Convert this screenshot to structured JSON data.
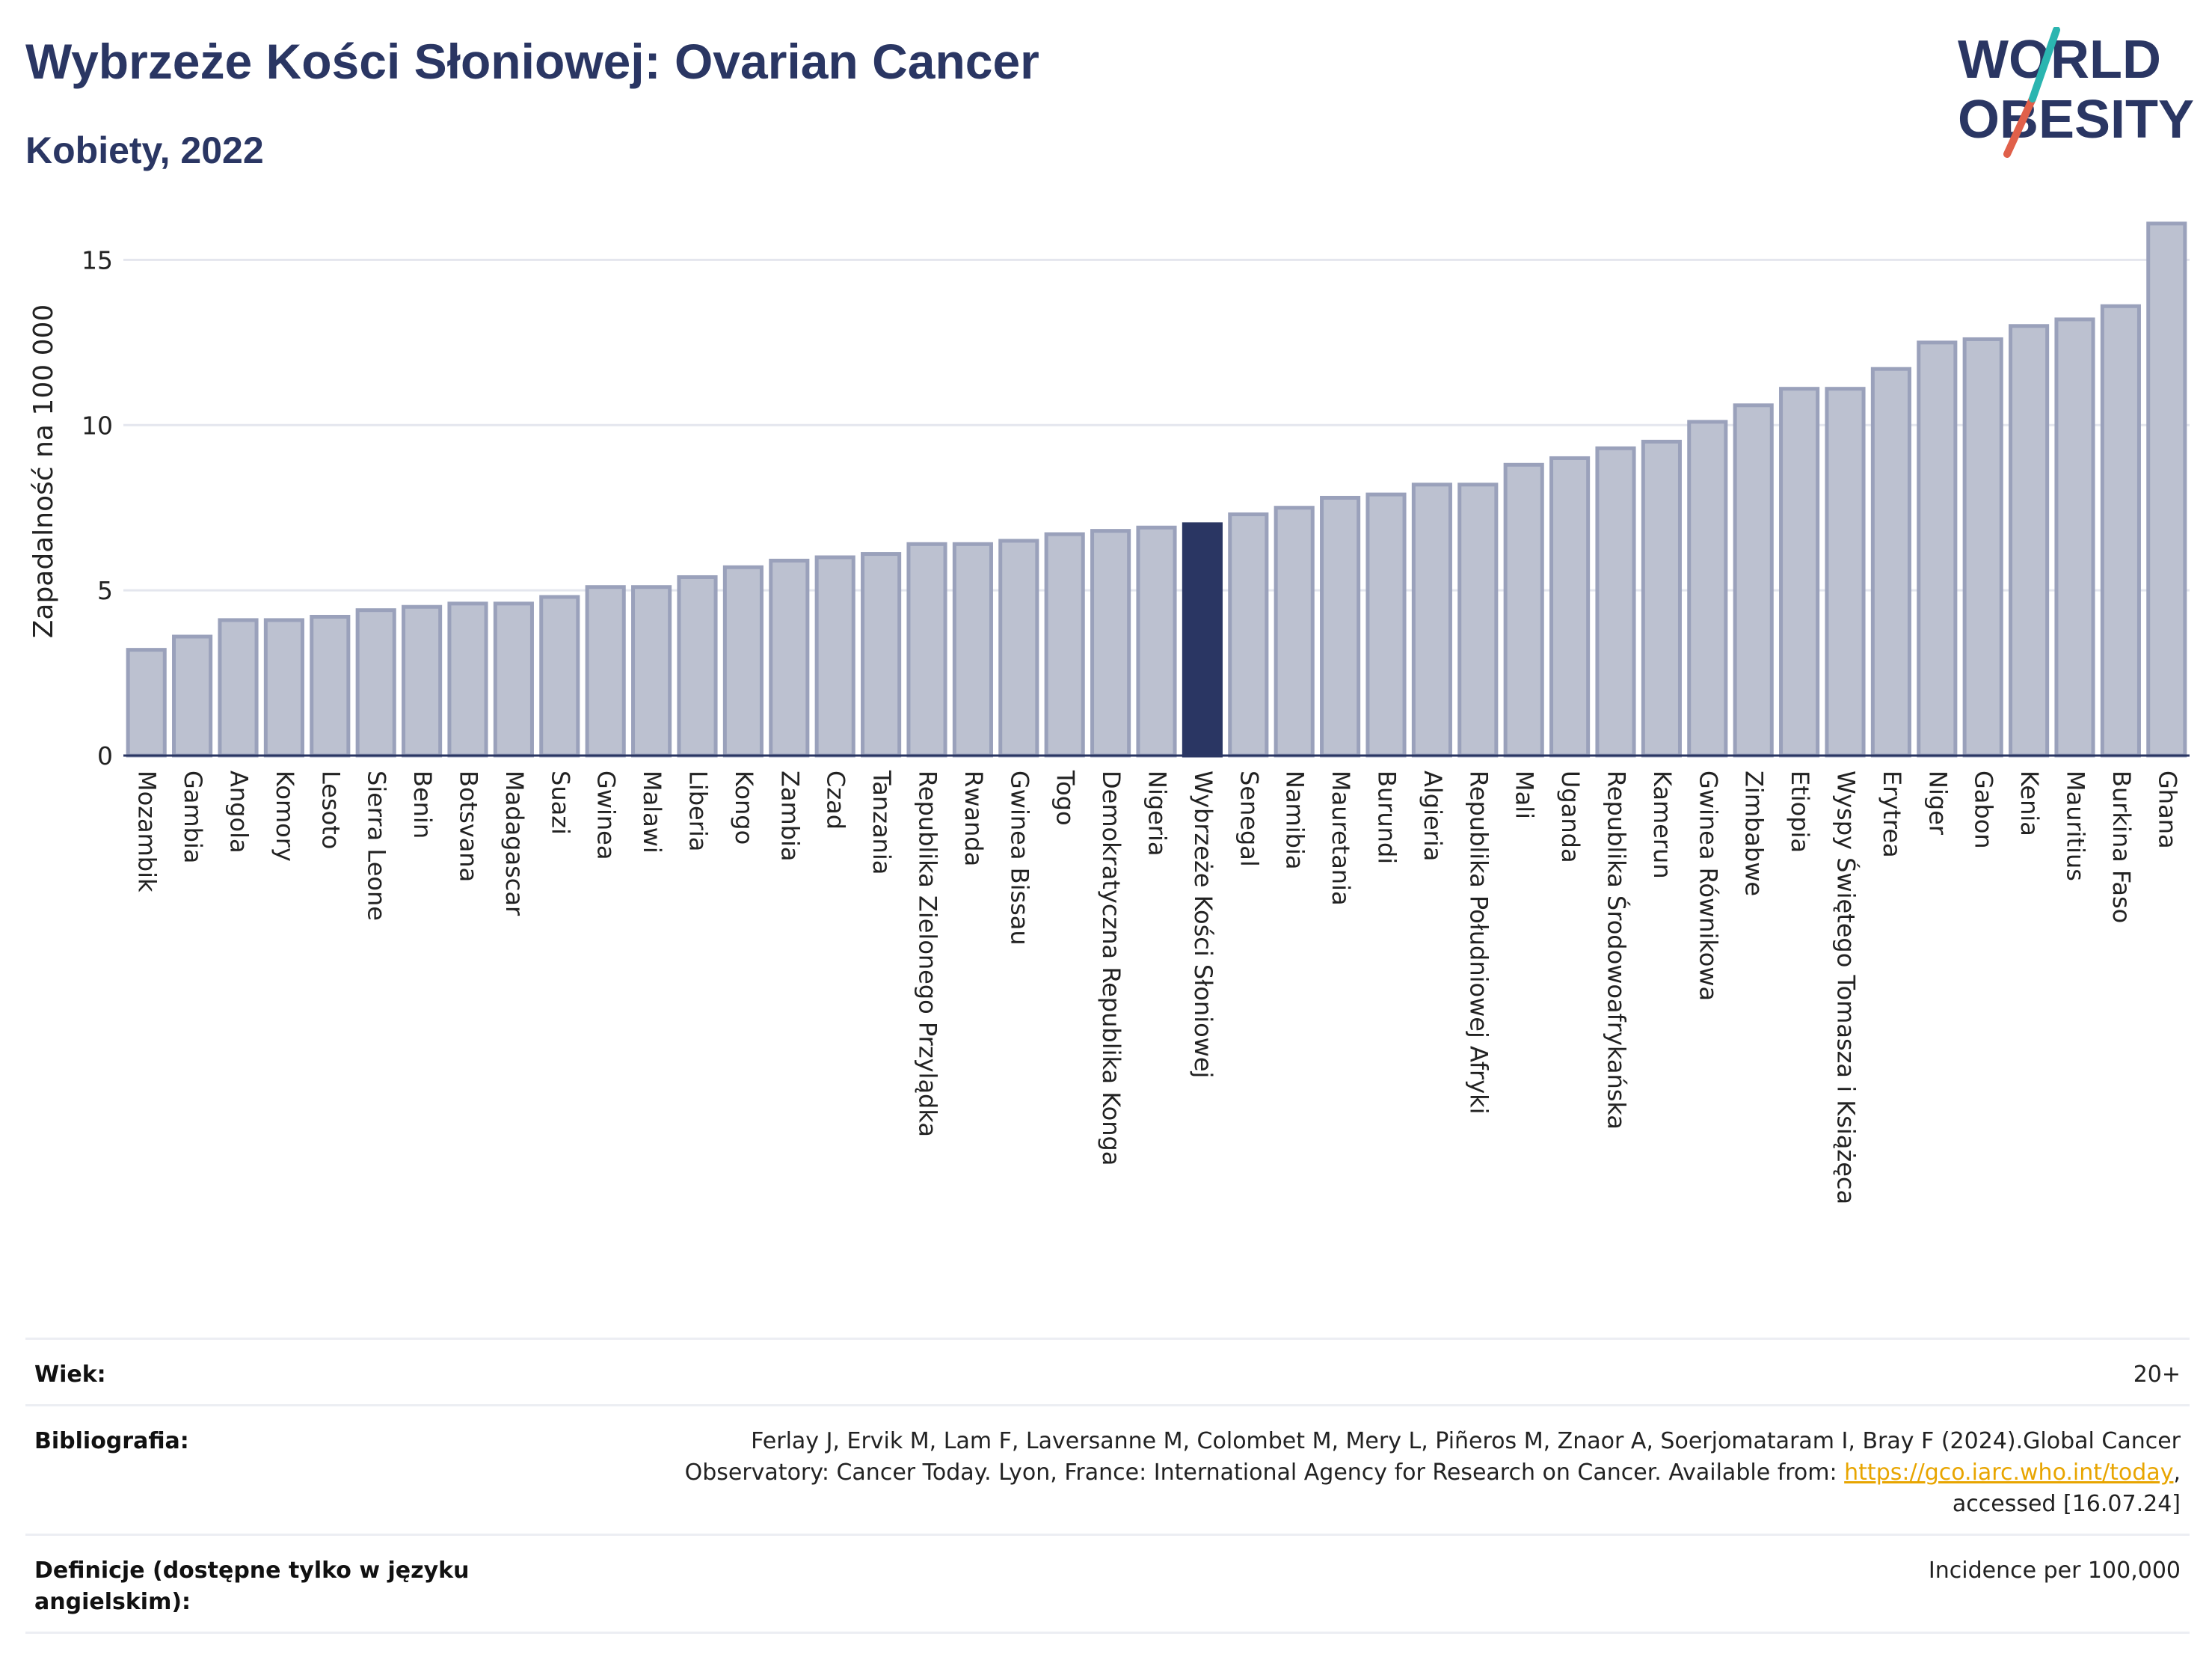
{
  "header": {
    "title": "Wybrzeże Kości Słoniowej: Ovarian Cancer",
    "subtitle": "Kobiety, 2022"
  },
  "logo": {
    "line1": "WORLD",
    "line2": "OBESITY",
    "accent_teal": "#2bb5b0",
    "accent_red": "#e0604a",
    "text_color": "#2a3663"
  },
  "colors": {
    "bar_default": "#bcc1d0",
    "bar_border": "#9aa1bb",
    "bar_highlight": "#2a3663",
    "grid": "#e4e6ee",
    "axis": "#2a3663"
  },
  "chart_data": {
    "type": "bar",
    "title": "Wybrzeże Kości Słoniowej: Ovarian Cancer",
    "subtitle": "Kobiety, 2022",
    "xlabel": "",
    "ylabel": "Zapadalność na 100 000",
    "ylim": [
      0,
      16.3
    ],
    "yticks": [
      0,
      5,
      10,
      15
    ],
    "grid": true,
    "highlight": "Wybrzeże Kości Słoniowej",
    "categories": [
      "Mozambik",
      "Gambia",
      "Angola",
      "Komory",
      "Lesoto",
      "Sierra Leone",
      "Benin",
      "Botsvana",
      "Madagascar",
      "Suazi",
      "Gwinea",
      "Malawi",
      "Liberia",
      "Kongo",
      "Zambia",
      "Czad",
      "Tanzania",
      "Republika Zielonego Przylądka",
      "Rwanda",
      "Gwinea Bissau",
      "Togo",
      "Demokratyczna Republika Konga",
      "Nigeria",
      "Wybrzeże Kości Słoniowej",
      "Senegal",
      "Namibia",
      "Mauretania",
      "Burundi",
      "Algieria",
      "Republika Południowej Afryki",
      "Mali",
      "Uganda",
      "Republika Środowoafrykańska",
      "Kamerun",
      "Gwinea Równikowa",
      "Zimbabwe",
      "Etiopia",
      "Wyspy Świętego Tomasza i Książęca",
      "Erytrea",
      "Niger",
      "Gabon",
      "Kenia",
      "Mauritius",
      "Burkina Faso",
      "Ghana"
    ],
    "values": [
      3.2,
      3.6,
      4.1,
      4.1,
      4.2,
      4.4,
      4.5,
      4.6,
      4.6,
      4.8,
      5.1,
      5.1,
      5.4,
      5.7,
      5.9,
      6.0,
      6.1,
      6.4,
      6.4,
      6.5,
      6.7,
      6.8,
      6.9,
      7.0,
      7.3,
      7.5,
      7.8,
      7.9,
      8.2,
      8.2,
      8.8,
      9.0,
      9.3,
      9.5,
      10.1,
      10.6,
      11.1,
      11.1,
      11.7,
      12.5,
      12.6,
      13.0,
      13.2,
      13.6,
      16.1
    ]
  },
  "meta": [
    {
      "label": "Wiek:",
      "value": "20+"
    },
    {
      "label": "Bibliografia:",
      "value_before": "Ferlay J, Ervik M, Lam F, Laversanne M, Colombet M, Mery L, Piñeros M, Znaor A, Soerjomataram I, Bray F (2024).Global Cancer Observatory: Cancer Today. Lyon, France: International Agency for Research on Cancer. Available from: ",
      "link": "https://gco.iarc.who.int/today",
      "value_after": ", accessed [16.07.24]"
    },
    {
      "label": "Definicje (dostępne tylko w języku angielskim):",
      "value": "Incidence per 100,000"
    }
  ]
}
